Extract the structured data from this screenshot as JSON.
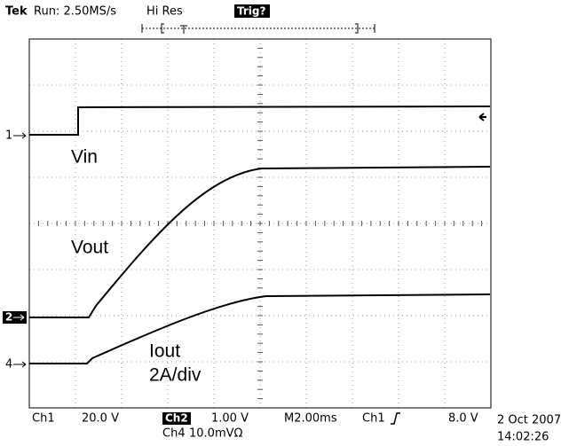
{
  "header": {
    "brand": "Tek",
    "status": "Run: 2.50MS/s",
    "mode": "Hi Res",
    "trigger": "Trig?"
  },
  "traces": [
    {
      "label": "Vin",
      "marker": "1"
    },
    {
      "label": "Vout",
      "marker": "2"
    },
    {
      "label": "Iout",
      "scale": "2A/div",
      "marker": "4"
    }
  ],
  "footer": {
    "ch1": "Ch1",
    "ch1_scale": "20.0 V",
    "ch2": "Ch2",
    "ch2_scale": "1.00 V",
    "ch4": "Ch4",
    "ch4_scale": "10.0mVΩ",
    "timebase": "M2.00ms",
    "trigger_source": "Ch1",
    "trigger_level": "8.0 V",
    "date": "2 Oct 2007",
    "time": "14:02:26"
  }
}
